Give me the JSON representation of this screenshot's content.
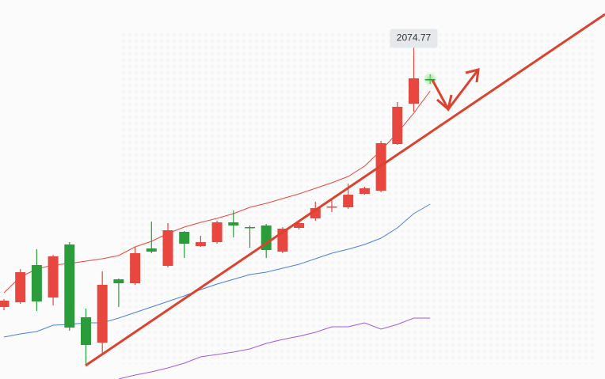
{
  "chart_data": {
    "type": "candlestick",
    "ylim": [
      1870.5,
      2110
    ],
    "up_color": "#e8473f",
    "down_color": "#2a9d3a",
    "open": [
      1916,
      1919,
      1942.5,
      1922,
      1955.5,
      1909.5,
      1893.5,
      1933.5,
      1931,
      1953,
      1942,
      1963.5,
      1954.5,
      1957,
      1969.5,
      1966.5,
      1967.5,
      1951,
      1966,
      1972,
      1979,
      1979,
      1987.5,
      1989.5,
      2019,
      2044.5,
      2060
    ],
    "high": [
      1921,
      1940,
      1952.5,
      1949,
      1957,
      1915,
      1938.5,
      1934,
      1954,
      1970,
      1969,
      1964,
      1961,
      1970.5,
      1977,
      1967.5,
      1968.5,
      1966.5,
      1970,
      1982.5,
      1985,
      1994,
      1992,
      2021,
      2045.5,
      2074.77,
      2063
    ],
    "low": [
      1914,
      1918,
      1913.5,
      1917,
      1901,
      1879,
      1887,
      1916,
      1930,
      1950,
      1941,
      1947,
      1954,
      1956,
      1960,
      1953.5,
      1947,
      1950,
      1965,
      1970.5,
      1976,
      1978,
      1987,
      1988.5,
      2018.5,
      2039.5,
      2057
    ],
    "close": [
      1920,
      1938,
      1919.5,
      1948,
      1903,
      1892,
      1930,
      1931,
      1950,
      1951,
      1964.5,
      1956,
      1957,
      1969.5,
      1967.5,
      1966,
      1952,
      1965.5,
      1969,
      1978.5,
      1979.5,
      1987,
      1991,
      2019.5,
      2042.5,
      2060.5,
      2060
    ],
    "series": [
      {
        "color": "#e8473f",
        "values": [
          1925,
          1935,
          1940,
          1942.5,
          1943.5,
          1945,
          1946.5,
          1948.5,
          1954,
          1957.5,
          1962.5,
          1966.5,
          1969.5,
          1972,
          1975,
          1979,
          1981.5,
          1984.5,
          1987.5,
          1991,
          1994.5,
          1998.5,
          2005,
          2015,
          2026,
          2038.5,
          2052.5
        ]
      },
      {
        "color": "#4a7fe0",
        "values": [
          1897,
          1899,
          1900.5,
          1904.5,
          1905,
          1906,
          1906,
          1909,
          1912.5,
          1916,
          1919.5,
          1923,
          1927,
          1930.5,
          1933.5,
          1936.5,
          1938,
          1940.5,
          1943,
          1946.5,
          1950,
          1952.5,
          1955.5,
          1959.5,
          1966,
          1975,
          1981
        ]
      },
      {
        "color": "#a05ae0",
        "values": [
          null,
          null,
          null,
          null,
          null,
          null,
          null,
          1870.5,
          1873,
          1875,
          1877.5,
          1880.5,
          1884.5,
          1886,
          1887.5,
          1889.5,
          1893,
          1895.5,
          1897.5,
          1900,
          1903.5,
          1903.5,
          1906,
          1902,
          1905,
          1909,
          1909
        ]
      }
    ],
    "tooltip_index": 25
  }
}
